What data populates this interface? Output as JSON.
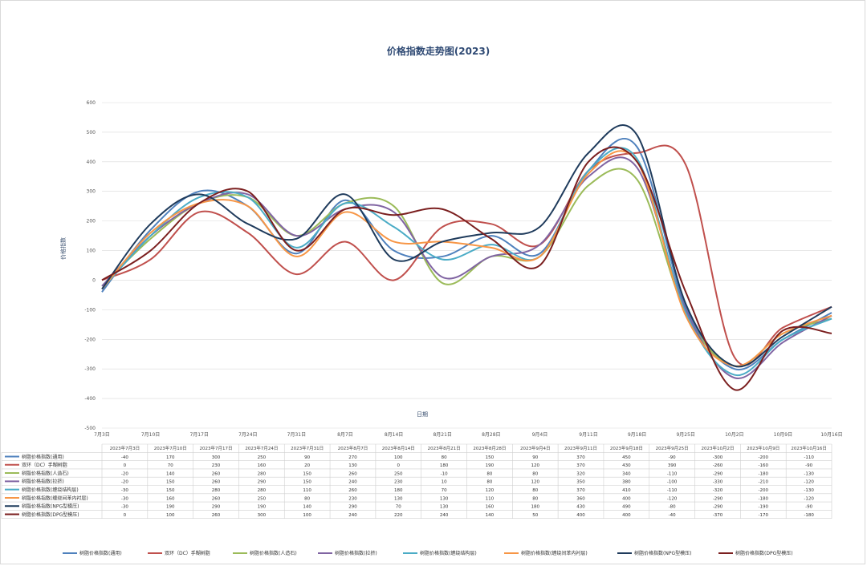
{
  "chart_data": {
    "type": "line",
    "title": "价格指数走势图(2023)",
    "xlabel": "日期",
    "ylabel": "价格指数",
    "ylim": [
      -500,
      600
    ],
    "yticks": [
      -500,
      -400,
      -300,
      -200,
      -100,
      0,
      100,
      200,
      300,
      400,
      500,
      600
    ],
    "categories": [
      "7月3日",
      "7月10日",
      "7月17日",
      "7月24日",
      "7月31日",
      "8月7日",
      "8月14日",
      "8月21日",
      "8月28日",
      "9月4日",
      "9月11日",
      "9月18日",
      "9月25日",
      "10月2日",
      "10月9日",
      "10月16日"
    ],
    "table_header": [
      "2023年7月3日",
      "2023年7月10日",
      "2023年7月17日",
      "2023年7月24日",
      "2023年7月31日",
      "2023年8月7日",
      "2023年8月14日",
      "2023年8月21日",
      "2023年8月28日",
      "2023年9月4日",
      "2023年9月11日",
      "2023年9月18日",
      "2023年9月25日",
      "2023年10月2日",
      "2023年10月9日",
      "2023年10月16日"
    ],
    "grid": true,
    "legend_position": "bottom",
    "series": [
      {
        "name": "树脂价格指数(通用)",
        "color": "#4f81bd",
        "values": [
          -40,
          170,
          300,
          250,
          90,
          270,
          100,
          80,
          150,
          90,
          370,
          450,
          -90,
          -300,
          -200,
          -110
        ]
      },
      {
        "name": "双环（DC）手糊树脂",
        "color": "#c0504d",
        "values": [
          0,
          70,
          230,
          160,
          20,
          130,
          0,
          180,
          190,
          120,
          370,
          430,
          390,
          -260,
          -160,
          -90
        ]
      },
      {
        "name": "树脂价格指数(人造石)",
        "color": "#9bbb59",
        "values": [
          -20,
          140,
          260,
          280,
          150,
          260,
          250,
          -10,
          80,
          80,
          320,
          340,
          -110,
          -290,
          -180,
          -130
        ]
      },
      {
        "name": "树脂价格指数(拉挤)",
        "color": "#8064a2",
        "values": [
          -20,
          150,
          260,
          290,
          150,
          240,
          230,
          10,
          80,
          120,
          350,
          380,
          -100,
          -330,
          -210,
          -120
        ]
      },
      {
        "name": "树脂价格指数(缠绕结构层)",
        "color": "#4bacc6",
        "values": [
          -30,
          150,
          280,
          280,
          110,
          260,
          180,
          70,
          120,
          80,
          370,
          410,
          -110,
          -320,
          -200,
          -130
        ]
      },
      {
        "name": "树脂价格指数(缠绕间苯内衬层)",
        "color": "#f79646",
        "values": [
          -30,
          160,
          260,
          250,
          80,
          230,
          130,
          130,
          110,
          80,
          360,
          400,
          -120,
          -290,
          -180,
          -120
        ]
      },
      {
        "name": "树脂价格指数(NPG型模压)",
        "color": "#1f3b5c",
        "values": [
          -30,
          190,
          290,
          190,
          140,
          290,
          70,
          130,
          160,
          180,
          430,
          490,
          -80,
          -290,
          -190,
          -90
        ]
      },
      {
        "name": "树脂价格指数(DPG型模压)",
        "color": "#7b1f1f",
        "values": [
          0,
          100,
          260,
          300,
          100,
          240,
          220,
          240,
          140,
          50,
          400,
          400,
          -40,
          -370,
          -170,
          -180
        ]
      }
    ]
  }
}
